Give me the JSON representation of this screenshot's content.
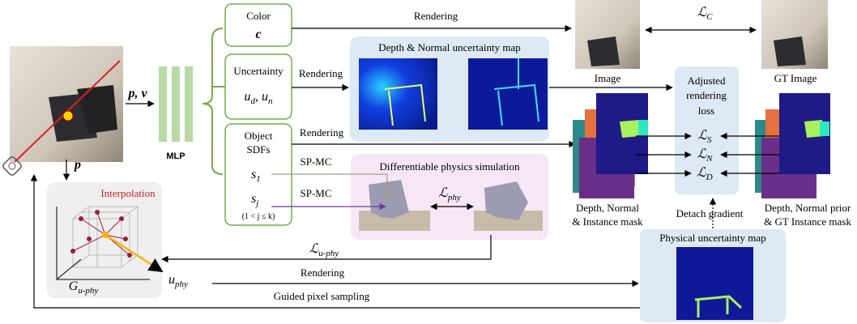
{
  "mlp": "MLP",
  "input": {
    "pose": "p, v",
    "point": "p"
  },
  "rendering": [
    "Rendering",
    "Rendering",
    "Rendering",
    "Rendering"
  ],
  "color_head": {
    "title": "Color",
    "symbol": "c"
  },
  "uncertainty_head": {
    "title": "Uncertainty",
    "terms": [
      {
        "base": "u",
        "sub": "d"
      },
      {
        "base": "u",
        "sub": "n"
      }
    ],
    "separator": ", "
  },
  "sdf_head": {
    "title": [
      "Object",
      "SDFs"
    ],
    "s1": {
      "base": "s",
      "sub": "1"
    },
    "sj": {
      "base": "s",
      "sub": "j"
    },
    "range": "(1 < j ≤ k)"
  },
  "sp_mc": [
    "SP-MC",
    "SP-MC"
  ],
  "image": "Image",
  "gt_image": "GT Image",
  "loss_c": {
    "base": "ℒ",
    "sub": "C"
  },
  "depth_normal_panel": "Depth & Normal uncertainty map",
  "physics_panel": "Differentiable physics simulation",
  "loss_phy": {
    "base": "ℒ",
    "sub": "phy"
  },
  "adjusted_loss": {
    "title": [
      "Adjusted",
      "rendering",
      "loss"
    ],
    "terms": [
      {
        "base": "ℒ",
        "sub": "S"
      },
      {
        "base": "ℒ",
        "sub": "N"
      },
      {
        "base": "ℒ",
        "sub": "D"
      }
    ]
  },
  "pred_caption": [
    "Depth, Normal",
    "& Instance mask"
  ],
  "gt_caption": [
    "Depth, Normal prior",
    "& GT Instance mask"
  ],
  "detach": "Detach gradient",
  "physical_panel": "Physical uncertainty map",
  "grid": {
    "label": "Interpolation",
    "name": {
      "base": "G",
      "sub": "u-phy"
    }
  },
  "loss_uphy": {
    "base": "ℒ",
    "sub": "u-phy"
  },
  "uphy": {
    "base": "u",
    "sub": "phy"
  },
  "guided": "Guided pixel sampling"
}
